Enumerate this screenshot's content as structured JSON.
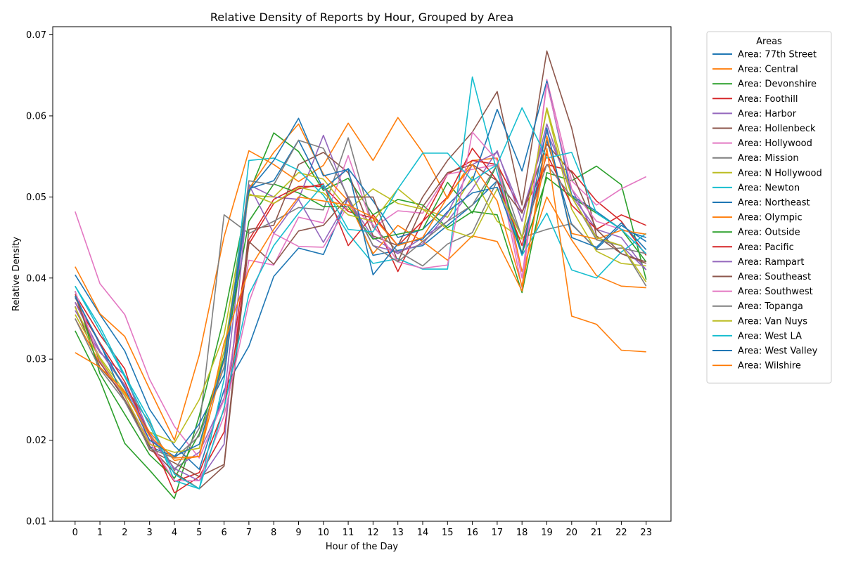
{
  "chart_data": {
    "type": "line",
    "title": "Relative Density of Reports by Hour, Grouped by Area",
    "xlabel": "Hour of the Day",
    "ylabel": "Relative Density",
    "legend_title": "Areas",
    "legend_position": "outside-right",
    "grid": false,
    "x": [
      0,
      1,
      2,
      3,
      4,
      5,
      6,
      7,
      8,
      9,
      10,
      11,
      12,
      13,
      14,
      15,
      16,
      17,
      18,
      19,
      20,
      21,
      22,
      23
    ],
    "xlim": [
      -0.9,
      24.0
    ],
    "ylim": [
      0.01,
      0.071
    ],
    "yticks": [
      "0.01",
      "0.02",
      "0.03",
      "0.04",
      "0.05",
      "0.06",
      "0.07"
    ],
    "series": [
      {
        "name": "Area: 77th Street",
        "color": "#1f77b4",
        "values": [
          0.0404,
          0.0355,
          0.031,
          0.0238,
          0.0193,
          0.0164,
          0.0262,
          0.0316,
          0.0402,
          0.0437,
          0.0429,
          0.05,
          0.0428,
          0.0434,
          0.044,
          0.0465,
          0.049,
          0.052,
          0.0428,
          0.057,
          0.0466,
          0.0436,
          0.0465,
          0.0445
        ]
      },
      {
        "name": "Area: Central",
        "color": "#ff7f0e",
        "values": [
          0.0414,
          0.0356,
          0.0328,
          0.0263,
          0.02,
          0.0305,
          0.0451,
          0.0557,
          0.054,
          0.0519,
          0.0539,
          0.0591,
          0.0545,
          0.0598,
          0.0555,
          0.0498,
          0.0545,
          0.0548,
          0.0408,
          0.05,
          0.0447,
          0.0403,
          0.039,
          0.0388
        ]
      },
      {
        "name": "Area: Devonshire",
        "color": "#2ca02c",
        "values": [
          0.0335,
          0.0274,
          0.0196,
          0.0163,
          0.0128,
          0.023,
          0.0352,
          0.0505,
          0.0579,
          0.0556,
          0.0508,
          0.0523,
          0.0478,
          0.0497,
          0.049,
          0.0462,
          0.0482,
          0.0478,
          0.0382,
          0.053,
          0.052,
          0.0538,
          0.0515,
          0.0398
        ]
      },
      {
        "name": "Area: Foothill",
        "color": "#d62728",
        "values": [
          0.038,
          0.033,
          0.0288,
          0.0193,
          0.0149,
          0.016,
          0.0238,
          0.0447,
          0.0497,
          0.0513,
          0.0513,
          0.0482,
          0.0474,
          0.0408,
          0.047,
          0.0528,
          0.0545,
          0.054,
          0.0482,
          0.054,
          0.0532,
          0.0495,
          0.047,
          0.0428
        ]
      },
      {
        "name": "Area: Harbor",
        "color": "#9467bd",
        "values": [
          0.036,
          0.0308,
          0.028,
          0.0208,
          0.0165,
          0.0185,
          0.0252,
          0.0515,
          0.05,
          0.0497,
          0.0576,
          0.0497,
          0.045,
          0.043,
          0.045,
          0.047,
          0.051,
          0.0557,
          0.047,
          0.059,
          0.0502,
          0.046,
          0.045,
          0.041
        ]
      },
      {
        "name": "Area: Hollenbeck",
        "color": "#8c564b",
        "values": [
          0.0365,
          0.029,
          0.0255,
          0.0188,
          0.0172,
          0.0155,
          0.017,
          0.046,
          0.0465,
          0.054,
          0.0555,
          0.053,
          0.0452,
          0.044,
          0.05,
          0.0545,
          0.058,
          0.063,
          0.049,
          0.068,
          0.0585,
          0.0452,
          0.043,
          0.0418
        ]
      },
      {
        "name": "Area: Hollywood",
        "color": "#e377c2",
        "values": [
          0.0482,
          0.0393,
          0.0355,
          0.0275,
          0.0217,
          0.0178,
          0.025,
          0.0422,
          0.0416,
          0.0475,
          0.0468,
          0.0551,
          0.0462,
          0.0483,
          0.048,
          0.0528,
          0.0534,
          0.054,
          0.0388,
          0.0645,
          0.052,
          0.049,
          0.051,
          0.0525
        ]
      },
      {
        "name": "Area: Mission",
        "color": "#7f7f7f",
        "values": [
          0.037,
          0.031,
          0.0266,
          0.0222,
          0.0162,
          0.0215,
          0.0478,
          0.0455,
          0.047,
          0.0487,
          0.0484,
          0.0573,
          0.0463,
          0.0433,
          0.0415,
          0.0442,
          0.0456,
          0.052,
          0.045,
          0.046,
          0.0467,
          0.0435,
          0.0437,
          0.043
        ]
      },
      {
        "name": "Area: N Hollywood",
        "color": "#bcbd22",
        "values": [
          0.0364,
          0.0302,
          0.026,
          0.021,
          0.0197,
          0.025,
          0.033,
          0.0502,
          0.05,
          0.053,
          0.0522,
          0.0484,
          0.051,
          0.0492,
          0.0485,
          0.0475,
          0.0525,
          0.047,
          0.0448,
          0.0608,
          0.0485,
          0.0433,
          0.0418,
          0.0415
        ]
      },
      {
        "name": "Area: Newton",
        "color": "#17becf",
        "values": [
          0.039,
          0.034,
          0.028,
          0.0225,
          0.015,
          0.014,
          0.0275,
          0.0545,
          0.0548,
          0.0533,
          0.0502,
          0.0455,
          0.0418,
          0.0424,
          0.0411,
          0.0411,
          0.0648,
          0.053,
          0.0428,
          0.048,
          0.041,
          0.04,
          0.0432,
          0.0455
        ]
      },
      {
        "name": "Area: Northeast",
        "color": "#1f77b4",
        "values": [
          0.0376,
          0.032,
          0.0248,
          0.0192,
          0.018,
          0.022,
          0.028,
          0.051,
          0.052,
          0.057,
          0.051,
          0.0535,
          0.0495,
          0.045,
          0.046,
          0.049,
          0.052,
          0.0608,
          0.0532,
          0.0643,
          0.0502,
          0.0482,
          0.046,
          0.045
        ]
      },
      {
        "name": "Area: Olympic",
        "color": "#ff7f0e",
        "values": [
          0.035,
          0.0295,
          0.0258,
          0.021,
          0.0175,
          0.018,
          0.03,
          0.051,
          0.0555,
          0.059,
          0.0528,
          0.0495,
          0.043,
          0.0465,
          0.0445,
          0.0422,
          0.0452,
          0.0445,
          0.0384,
          0.0575,
          0.0455,
          0.0448,
          0.0459,
          0.0454
        ]
      },
      {
        "name": "Area: Outside",
        "color": "#2ca02c",
        "values": [
          0.0384,
          0.0282,
          0.0232,
          0.0182,
          0.0153,
          0.0208,
          0.0302,
          0.047,
          0.0516,
          0.0505,
          0.0488,
          0.0488,
          0.0448,
          0.0454,
          0.046,
          0.0518,
          0.048,
          0.054,
          0.043,
          0.0524,
          0.05,
          0.048,
          0.046,
          0.042
        ]
      },
      {
        "name": "Area: Pacific",
        "color": "#d62728",
        "values": [
          0.037,
          0.032,
          0.0272,
          0.0206,
          0.0135,
          0.0155,
          0.021,
          0.0442,
          0.0492,
          0.051,
          0.0516,
          0.044,
          0.0478,
          0.044,
          0.047,
          0.05,
          0.056,
          0.052,
          0.044,
          0.0553,
          0.049,
          0.046,
          0.0478,
          0.0465
        ]
      },
      {
        "name": "Area: Rampart",
        "color": "#9467bd",
        "values": [
          0.037,
          0.031,
          0.0268,
          0.0205,
          0.0165,
          0.015,
          0.0195,
          0.0515,
          0.0455,
          0.0497,
          0.0444,
          0.0497,
          0.044,
          0.0432,
          0.0442,
          0.048,
          0.054,
          0.0555,
          0.048,
          0.058,
          0.051,
          0.045,
          0.044,
          0.041
        ]
      },
      {
        "name": "Area: Southeast",
        "color": "#8c564b",
        "values": [
          0.0378,
          0.0296,
          0.025,
          0.0192,
          0.016,
          0.014,
          0.0168,
          0.0445,
          0.0417,
          0.0458,
          0.0465,
          0.05,
          0.05,
          0.042,
          0.0488,
          0.053,
          0.054,
          0.052,
          0.048,
          0.0565,
          0.053,
          0.046,
          0.043,
          0.042
        ]
      },
      {
        "name": "Area: Southwest",
        "color": "#e377c2",
        "values": [
          0.0384,
          0.0298,
          0.0254,
          0.0198,
          0.015,
          0.015,
          0.023,
          0.037,
          0.0455,
          0.0439,
          0.0438,
          0.049,
          0.0466,
          0.042,
          0.0412,
          0.0416,
          0.058,
          0.0545,
          0.04,
          0.064,
          0.051,
          0.047,
          0.046,
          0.043
        ]
      },
      {
        "name": "Area: Topanga",
        "color": "#7f7f7f",
        "values": [
          0.035,
          0.0288,
          0.0248,
          0.019,
          0.0178,
          0.0205,
          0.029,
          0.052,
          0.0515,
          0.057,
          0.056,
          0.05,
          0.044,
          0.042,
          0.0445,
          0.047,
          0.049,
          0.054,
          0.045,
          0.054,
          0.05,
          0.0447,
          0.044,
          0.039
        ]
      },
      {
        "name": "Area: Van Nuys",
        "color": "#bcbd22",
        "values": [
          0.0355,
          0.03,
          0.0255,
          0.0195,
          0.0185,
          0.019,
          0.031,
          0.0504,
          0.0492,
          0.0512,
          0.0505,
          0.0478,
          0.047,
          0.051,
          0.0485,
          0.046,
          0.045,
          0.051,
          0.045,
          0.061,
          0.05,
          0.045,
          0.044,
          0.0395
        ]
      },
      {
        "name": "Area: West LA",
        "color": "#17becf",
        "values": [
          0.039,
          0.0335,
          0.0278,
          0.0218,
          0.0158,
          0.014,
          0.024,
          0.038,
          0.044,
          0.048,
          0.0515,
          0.046,
          0.0457,
          0.051,
          0.0554,
          0.0554,
          0.052,
          0.054,
          0.061,
          0.0548,
          0.0555,
          0.048,
          0.046,
          0.043
        ]
      },
      {
        "name": "Area: West Valley",
        "color": "#1f77b4",
        "values": [
          0.0378,
          0.0318,
          0.0264,
          0.02,
          0.018,
          0.0195,
          0.03,
          0.0508,
          0.0545,
          0.0597,
          0.0526,
          0.0534,
          0.0404,
          0.0442,
          0.0448,
          0.0482,
          0.0505,
          0.0512,
          0.043,
          0.0585,
          0.045,
          0.0438,
          0.0468,
          0.0435
        ]
      },
      {
        "name": "Area: Wilshire",
        "color": "#ff7f0e",
        "values": [
          0.0308,
          0.029,
          0.026,
          0.0205,
          0.0178,
          0.018,
          0.032,
          0.041,
          0.046,
          0.05,
          0.0495,
          0.049,
          0.0475,
          0.044,
          0.045,
          0.05,
          0.054,
          0.0495,
          0.039,
          0.056,
          0.0353,
          0.0343,
          0.0311,
          0.0309
        ]
      }
    ]
  }
}
